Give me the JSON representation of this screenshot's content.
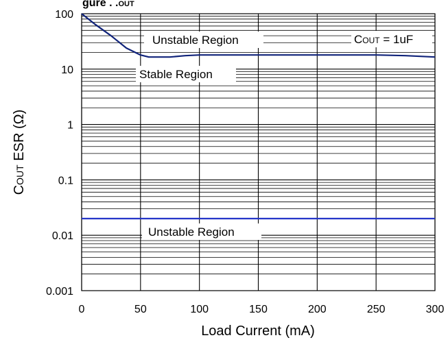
{
  "chart_data": {
    "type": "line",
    "title_fragment": "gure      .  .",
    "title_fragment_tail": "OUT",
    "xlabel": "Load Current (mA)",
    "ylabel_main": "C",
    "ylabel_sub": "OUT",
    "ylabel_rest": " ESR (Ω)",
    "xlim": [
      0,
      300
    ],
    "ylim": [
      0.001,
      100
    ],
    "y_scale": "log",
    "grid": true,
    "x_ticks": [
      0,
      50,
      100,
      150,
      200,
      250,
      300
    ],
    "x_tick_labels": [
      "0",
      "50",
      "100",
      "150",
      "200",
      "250",
      "300"
    ],
    "y_ticks": [
      100,
      10,
      1,
      0.1,
      0.01,
      0.001
    ],
    "y_tick_labels": [
      "100",
      "10",
      "1",
      "0.1",
      "0.01",
      "0.001"
    ],
    "series": [
      {
        "color": "#10237a",
        "points": [
          [
            0,
            100
          ],
          [
            12,
            63
          ],
          [
            25,
            40
          ],
          [
            38,
            24
          ],
          [
            50,
            18
          ],
          [
            57,
            16.5
          ],
          [
            65,
            16.5
          ],
          [
            75,
            16.5
          ],
          [
            88,
            17.5
          ],
          [
            100,
            18
          ],
          [
            150,
            18
          ],
          [
            200,
            18
          ],
          [
            250,
            18
          ],
          [
            275,
            17.5
          ],
          [
            300,
            16.5
          ]
        ]
      },
      {
        "color": "#2233c8",
        "points": [
          [
            0,
            0.02
          ],
          [
            300,
            0.02
          ]
        ]
      }
    ],
    "annotations": {
      "upper_unstable": "Unstable Region",
      "stable": "Stable Region",
      "lower_unstable": "Unstable Region",
      "condition_main": "C",
      "condition_sub": "OUT",
      "condition_rest": " = 1uF"
    }
  }
}
